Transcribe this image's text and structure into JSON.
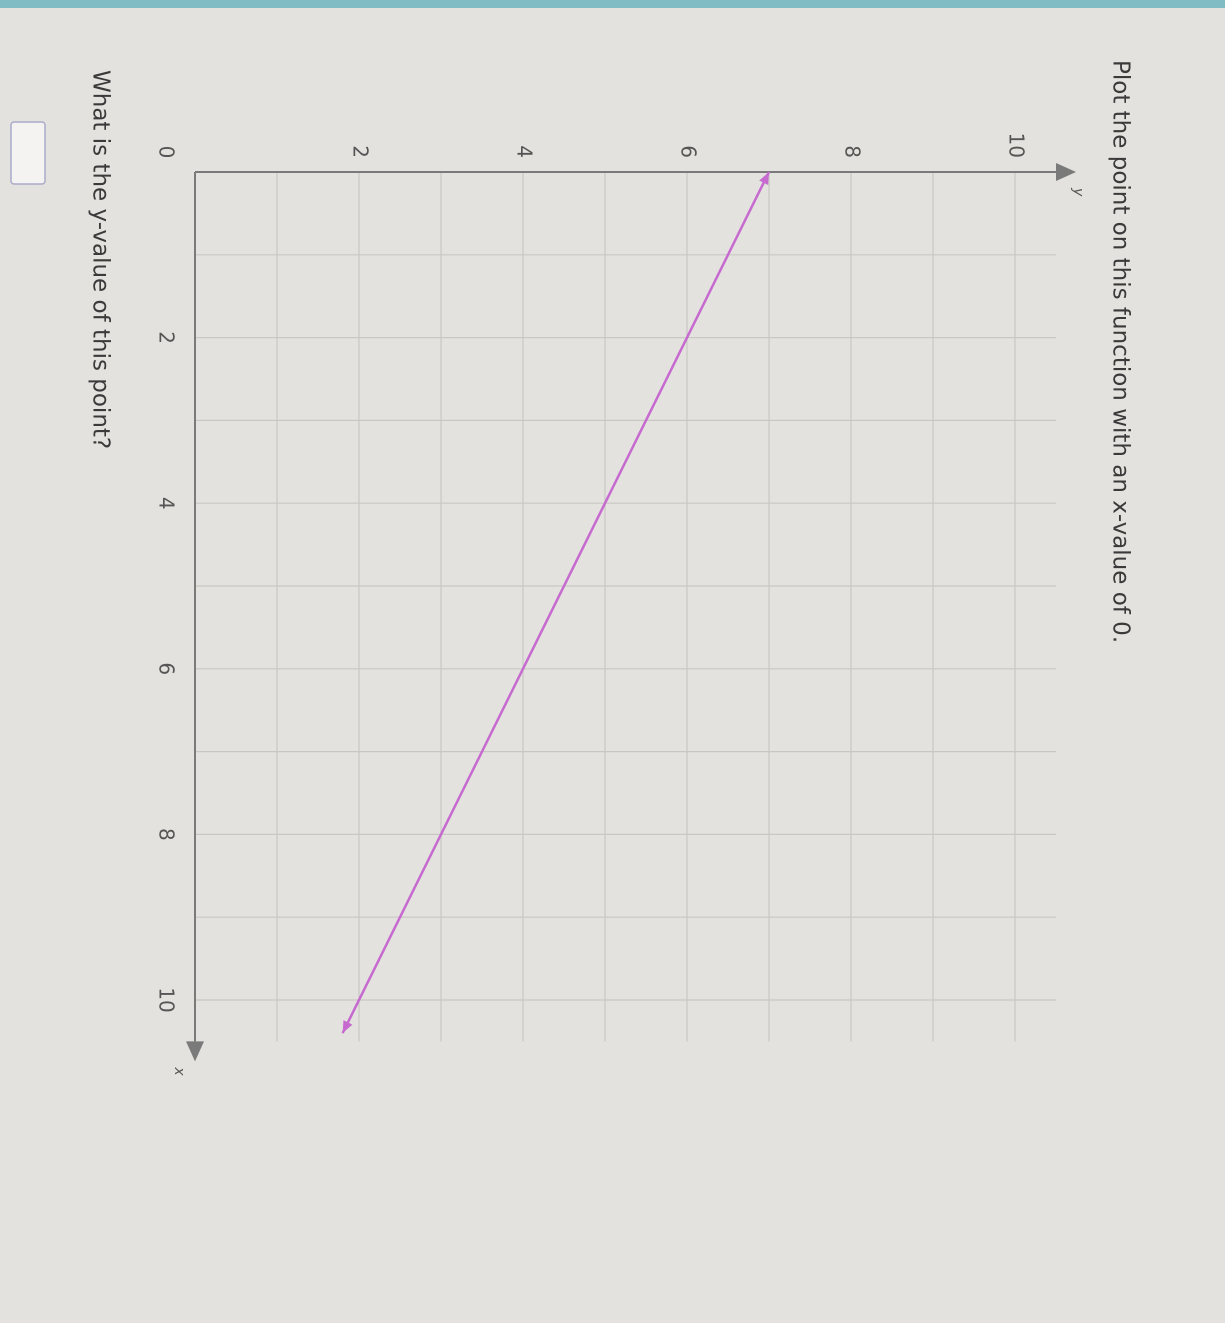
{
  "question": "Plot the point on this function with an x-value of 0.",
  "answer_prompt": "What is the y-value of this point?",
  "chart_data": {
    "type": "line",
    "x_label": "x",
    "y_label": "y",
    "x": [
      0,
      10.4
    ],
    "series": [
      {
        "color": "#c66ad0",
        "values": [
          7,
          1.8
        ]
      }
    ],
    "xlim": [
      0,
      10.5
    ],
    "ylim": [
      0,
      10.5
    ],
    "xticks": [
      0,
      2,
      4,
      6,
      8,
      10
    ],
    "yticks": [
      2,
      4,
      6,
      8,
      10
    ],
    "grid": true
  }
}
